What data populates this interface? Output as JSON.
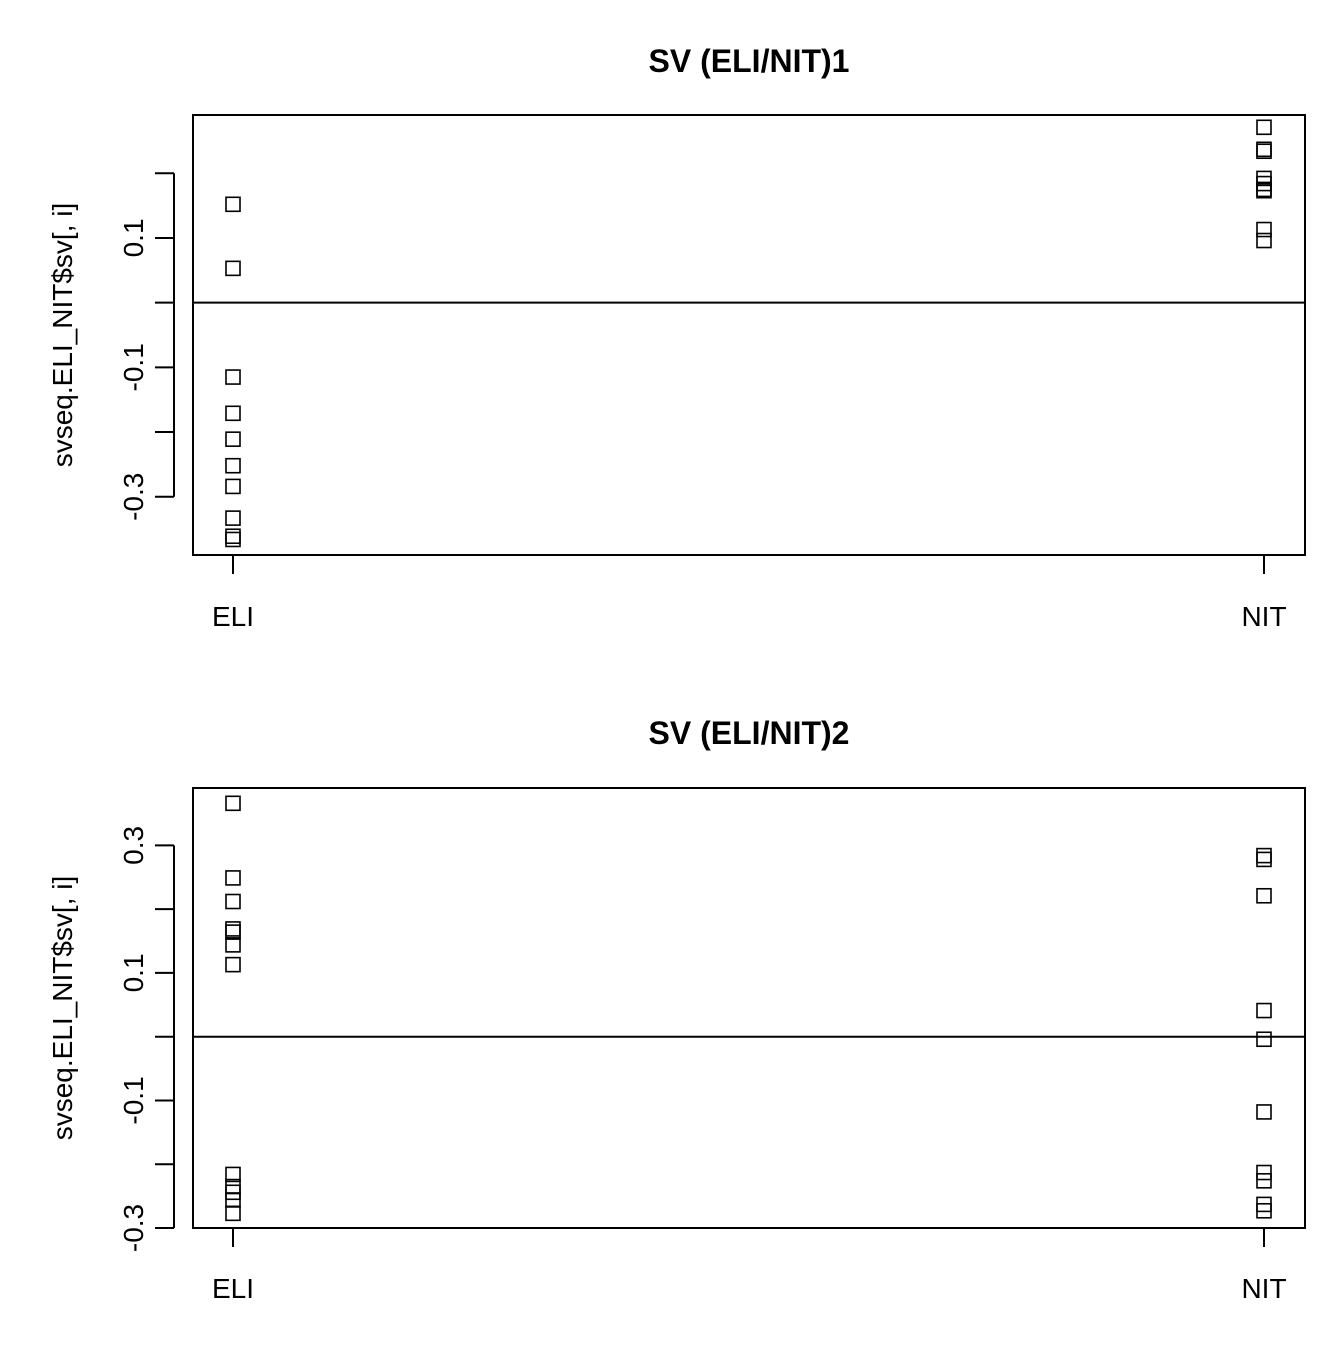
{
  "chart_data": [
    {
      "type": "scatter",
      "title": "SV (ELI/NIT)1",
      "ylabel": "svseq.ELI_NIT$sv[, i]",
      "xlabel": "",
      "categories": [
        "ELI",
        "NIT"
      ],
      "ylim": [
        -0.39,
        0.29
      ],
      "yticks": [
        -0.3,
        -0.2,
        -0.1,
        0.0,
        0.1,
        0.2
      ],
      "ytick_labels": [
        "-0.3",
        "",
        "-0.1",
        "",
        "0.1",
        ""
      ],
      "hline": 0,
      "grid": false,
      "legend": "none",
      "marker": "open-square",
      "points": {
        "ELI": [
          0.152,
          0.053,
          -0.115,
          -0.171,
          -0.211,
          -0.252,
          -0.284,
          -0.333,
          -0.361,
          -0.366
        ],
        "NIT": [
          0.271,
          0.237,
          0.234,
          0.192,
          0.184,
          0.175,
          0.173,
          0.113,
          0.096
        ]
      }
    },
    {
      "type": "scatter",
      "title": "SV (ELI/NIT)2",
      "ylabel": "svseq.ELI_NIT$sv[, i]",
      "xlabel": "",
      "categories": [
        "ELI",
        "NIT"
      ],
      "ylim": [
        -0.3,
        0.39
      ],
      "yticks": [
        -0.3,
        -0.2,
        -0.1,
        0.0,
        0.1,
        0.2,
        0.3
      ],
      "ytick_labels": [
        "-0.3",
        "",
        "-0.1",
        "",
        "0.1",
        "",
        "0.3"
      ],
      "hline": 0,
      "grid": false,
      "legend": "none",
      "marker": "open-square",
      "points": {
        "ELI": [
          0.366,
          0.249,
          0.212,
          0.169,
          0.164,
          0.144,
          0.113,
          -0.216,
          -0.235,
          -0.244,
          -0.256,
          -0.277
        ],
        "NIT": [
          0.284,
          0.278,
          0.221,
          0.041,
          -0.004,
          -0.118,
          -0.213,
          -0.226,
          -0.263,
          -0.273
        ]
      }
    }
  ]
}
